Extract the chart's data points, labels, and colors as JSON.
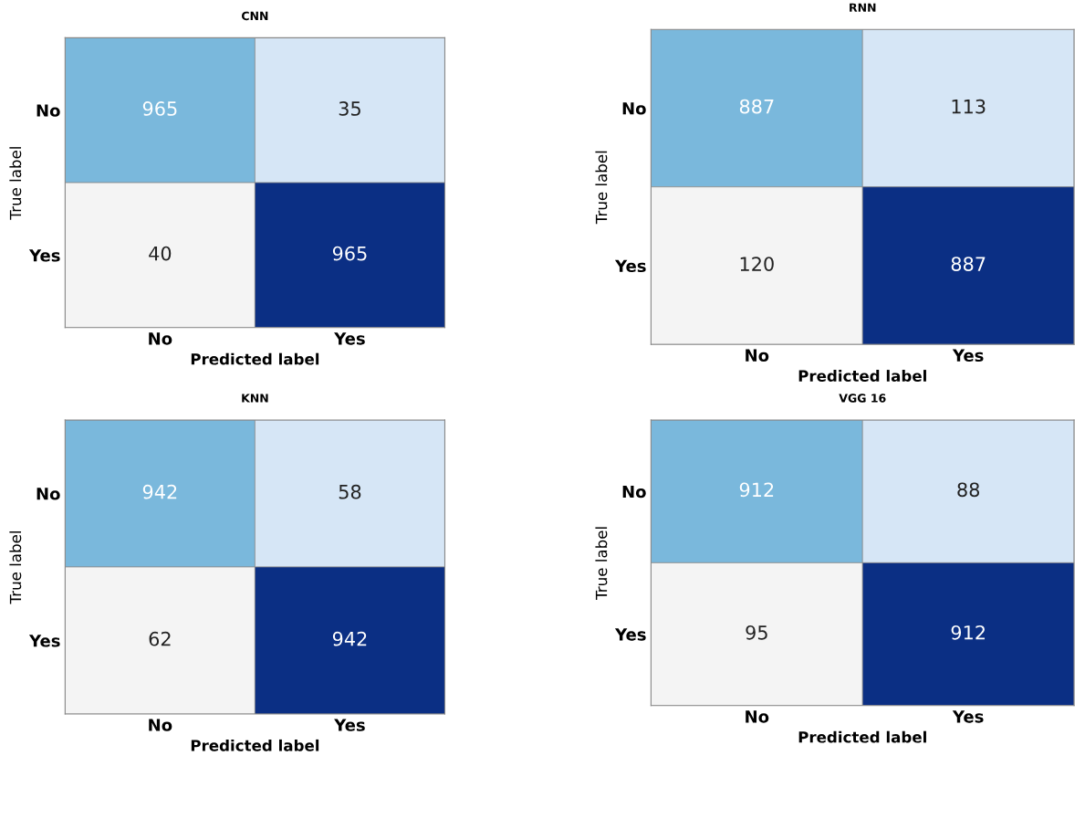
{
  "chart_data": [
    {
      "type": "heatmap",
      "title": "CNN",
      "data_labels": true,
      "xlabel": "Predicted label",
      "ylabel": "True label",
      "categories": [
        "No",
        "Yes"
      ],
      "y_categories": [
        "No",
        "Yes"
      ],
      "cells": [
        [
          965,
          35
        ],
        [
          40,
          965
        ]
      ],
      "colors": [
        [
          "#7ab8dc",
          "#d6e6f6"
        ],
        [
          "#f4f4f4",
          "#0b2f84"
        ]
      ]
    },
    {
      "type": "heatmap",
      "title": "RNN",
      "data_labels": true,
      "xlabel": "Predicted label",
      "ylabel": "True label",
      "categories": [
        "No",
        "Yes"
      ],
      "y_categories": [
        "No",
        "Yes"
      ],
      "cells": [
        [
          887,
          113
        ],
        [
          120,
          887
        ]
      ],
      "colors": [
        [
          "#7ab8dc",
          "#d6e6f6"
        ],
        [
          "#f4f4f4",
          "#0b2f84"
        ]
      ]
    },
    {
      "type": "heatmap",
      "title": "KNN",
      "data_labels": true,
      "xlabel": "Predicted label",
      "ylabel": "True label",
      "categories": [
        "No",
        "Yes"
      ],
      "y_categories": [
        "No",
        "Yes"
      ],
      "cells": [
        [
          942,
          58
        ],
        [
          62,
          942
        ]
      ],
      "colors": [
        [
          "#7ab8dc",
          "#d6e6f6"
        ],
        [
          "#f4f4f4",
          "#0b2f84"
        ]
      ]
    },
    {
      "type": "heatmap",
      "title": "VGG 16",
      "data_labels": true,
      "xlabel": "Predicted label",
      "ylabel": "True label",
      "categories": [
        "No",
        "Yes"
      ],
      "y_categories": [
        "No",
        "Yes"
      ],
      "cells": [
        [
          912,
          88
        ],
        [
          95,
          912
        ]
      ],
      "colors": [
        [
          "#7ab8dc",
          "#d6e6f6"
        ],
        [
          "#f4f4f4",
          "#0b2f84"
        ]
      ]
    }
  ]
}
